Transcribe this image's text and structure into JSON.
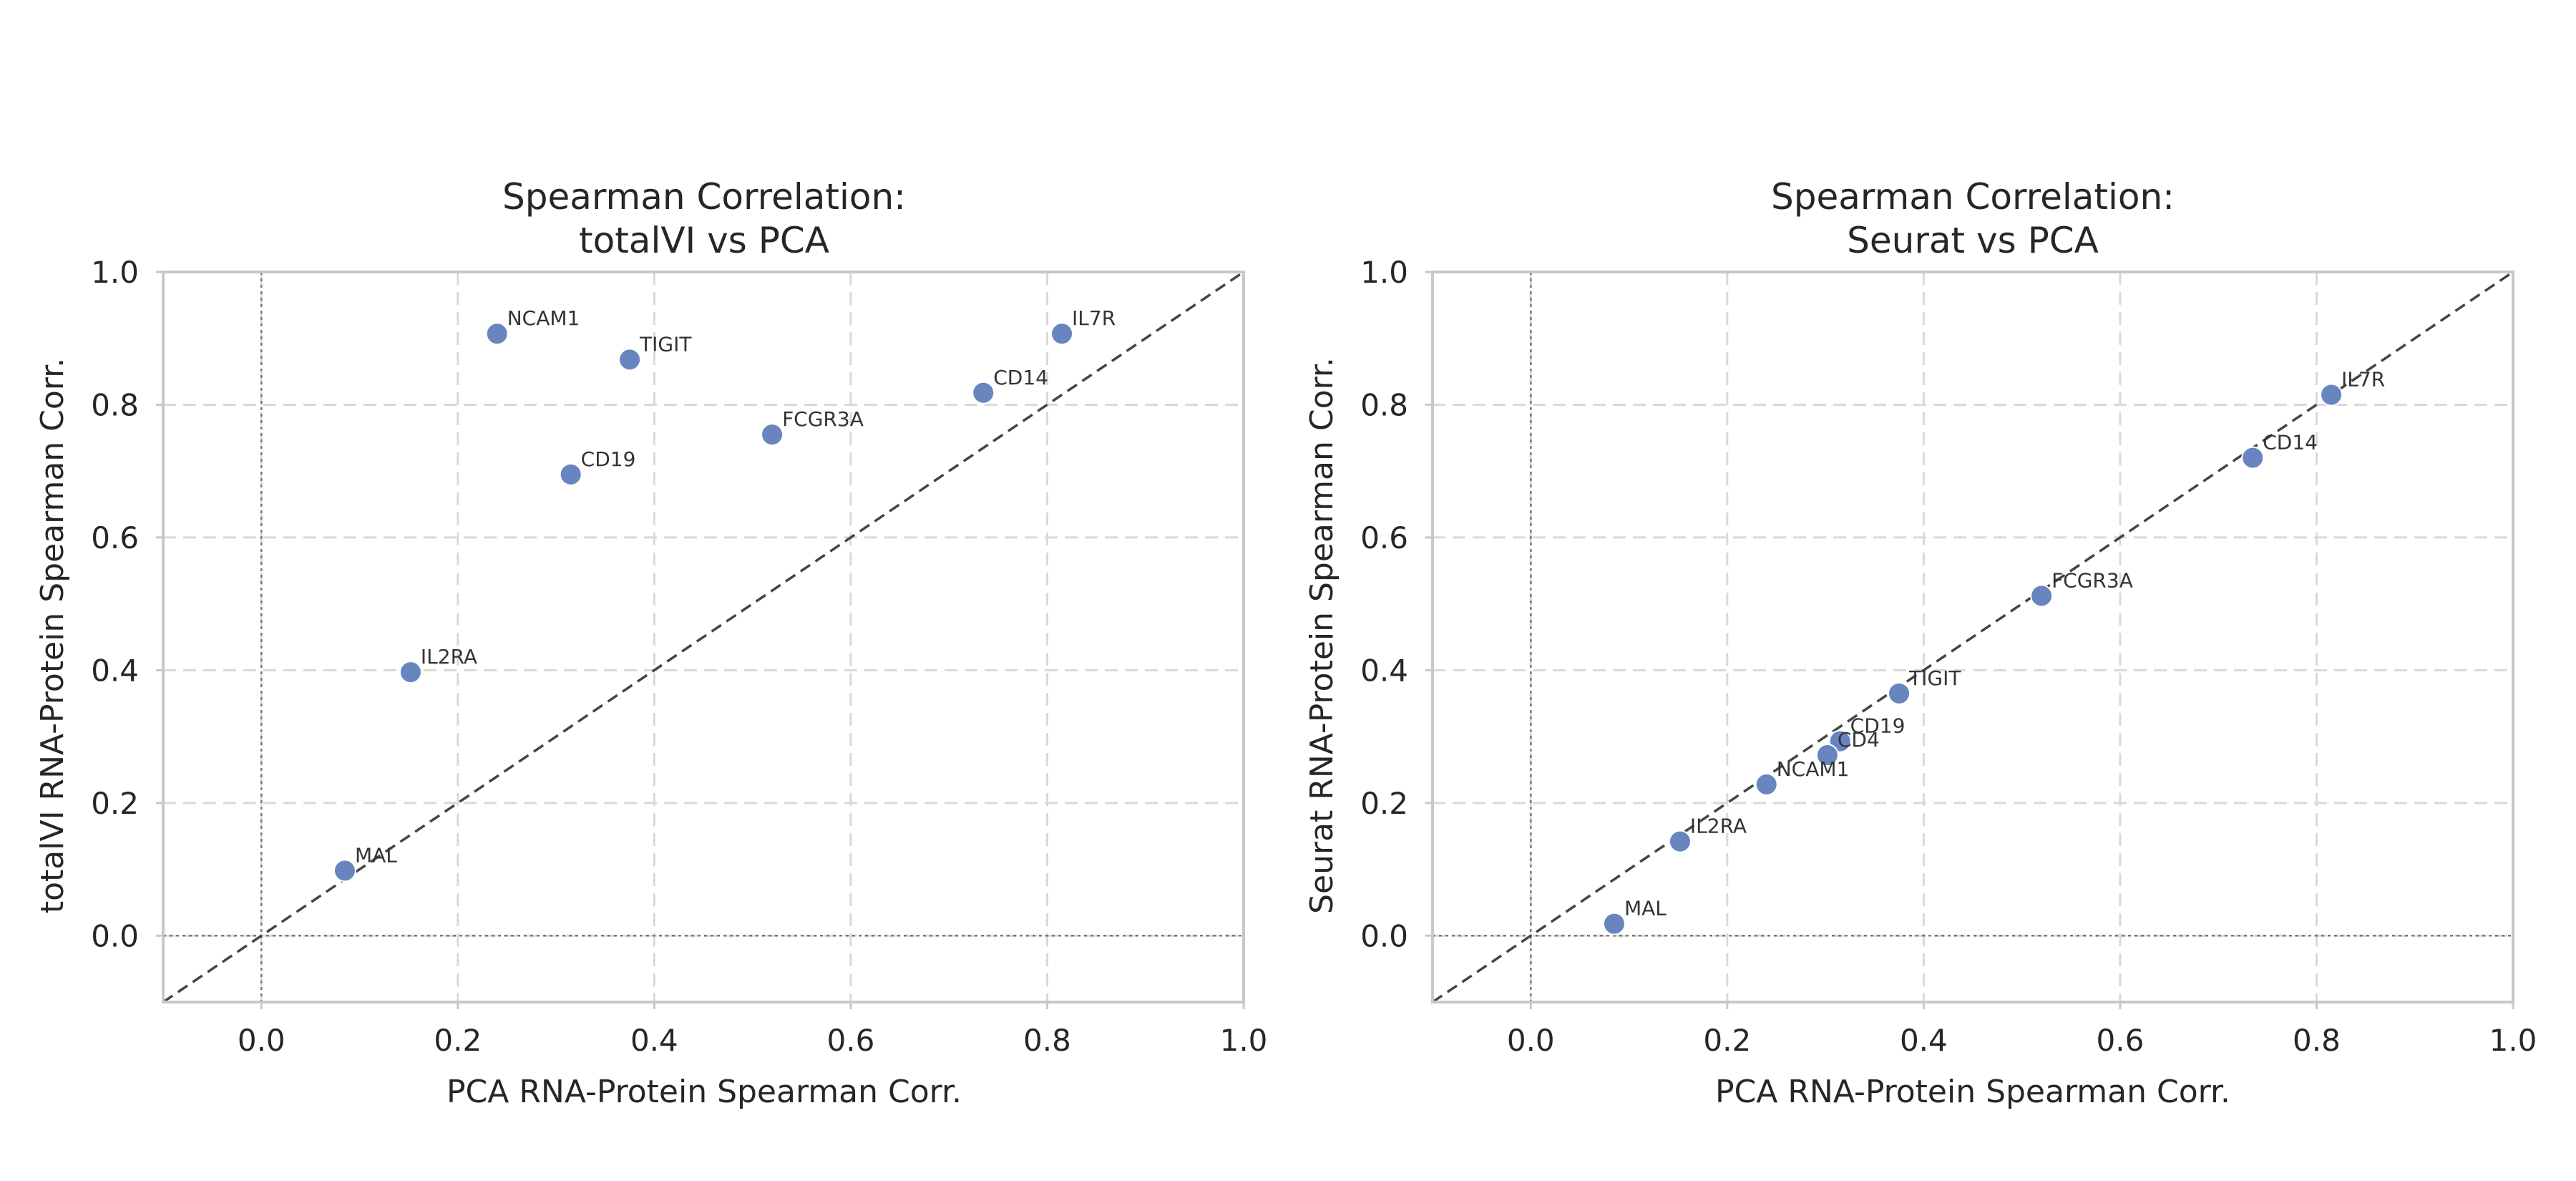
{
  "colors": {
    "point": "#6885c0",
    "grid": "#d9d9d9",
    "frame": "#c8c8c8",
    "diagonal": "#444444",
    "zero": "#777777"
  },
  "chart_data": [
    {
      "type": "scatter",
      "title_lines": [
        "Spearman Correlation:",
        "totalVI vs PCA"
      ],
      "xlabel": "PCA RNA-Protein Spearman Corr.",
      "ylabel": "totalVI RNA-Protein Spearman Corr.",
      "xlim": [
        -0.1,
        1.0
      ],
      "ylim": [
        -0.1,
        1.0
      ],
      "xticks": [
        "0.0",
        "0.2",
        "0.4",
        "0.6",
        "0.8",
        "1.0"
      ],
      "yticks": [
        "0.0",
        "0.2",
        "0.4",
        "0.6",
        "0.8",
        "1.0"
      ],
      "grid": true,
      "reference_lines": [
        "y=x",
        "x=0",
        "y=0"
      ],
      "points": [
        {
          "label": "NCAM1",
          "x": 0.24,
          "y": 0.907
        },
        {
          "label": "TIGIT",
          "x": 0.375,
          "y": 0.868
        },
        {
          "label": "IL7R",
          "x": 0.815,
          "y": 0.907
        },
        {
          "label": "CD14",
          "x": 0.735,
          "y": 0.818
        },
        {
          "label": "FCGR3A",
          "x": 0.52,
          "y": 0.755
        },
        {
          "label": "CD19",
          "x": 0.315,
          "y": 0.695
        },
        {
          "label": "IL2RA",
          "x": 0.152,
          "y": 0.397
        },
        {
          "label": "MAL",
          "x": 0.085,
          "y": 0.098
        }
      ]
    },
    {
      "type": "scatter",
      "title_lines": [
        "Spearman Correlation:",
        "Seurat vs PCA"
      ],
      "xlabel": "PCA RNA-Protein Spearman Corr.",
      "ylabel": "Seurat RNA-Protein Spearman Corr.",
      "xlim": [
        -0.1,
        1.0
      ],
      "ylim": [
        -0.1,
        1.0
      ],
      "xticks": [
        "0.0",
        "0.2",
        "0.4",
        "0.6",
        "0.8",
        "1.0"
      ],
      "yticks": [
        "0.0",
        "0.2",
        "0.4",
        "0.6",
        "0.8",
        "1.0"
      ],
      "grid": true,
      "reference_lines": [
        "y=x",
        "x=0",
        "y=0"
      ],
      "points": [
        {
          "label": "IL7R",
          "x": 0.815,
          "y": 0.815
        },
        {
          "label": "CD14",
          "x": 0.735,
          "y": 0.72
        },
        {
          "label": "FCGR3A",
          "x": 0.52,
          "y": 0.512
        },
        {
          "label": "TIGIT",
          "x": 0.375,
          "y": 0.365
        },
        {
          "label": "CD19",
          "x": 0.315,
          "y": 0.293
        },
        {
          "label": "CD4",
          "x": 0.302,
          "y": 0.272
        },
        {
          "label": "NCAM1",
          "x": 0.24,
          "y": 0.228
        },
        {
          "label": "IL2RA",
          "x": 0.152,
          "y": 0.142
        },
        {
          "label": "MAL",
          "x": 0.085,
          "y": 0.018
        }
      ]
    }
  ]
}
